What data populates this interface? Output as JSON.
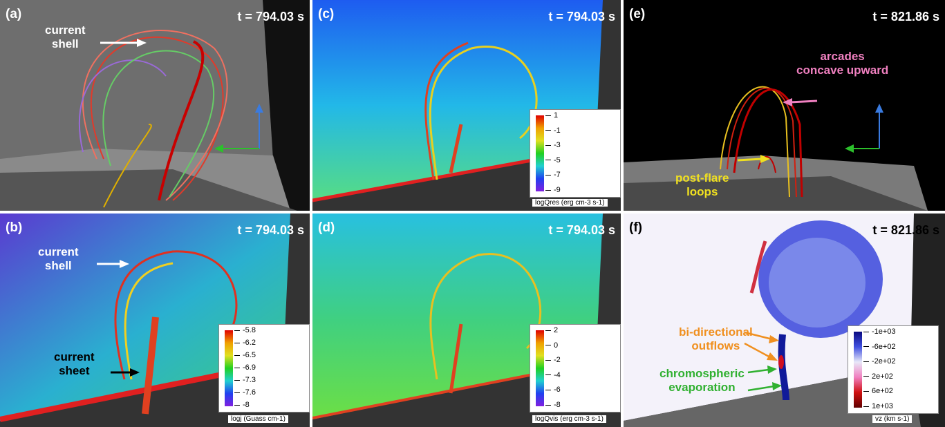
{
  "panels": [
    {
      "label": "(a)",
      "time": "t = 794.03 s",
      "annotations": [
        [
          "current",
          "shell"
        ]
      ]
    },
    {
      "label": "(b)",
      "time": "t = 794.03 s",
      "annotations": [
        [
          "current",
          "shell"
        ],
        [
          "current",
          "sheet"
        ]
      ],
      "colorbar": {
        "ticks": [
          "-5.8",
          "-6.2",
          "-6.5",
          "-6.9",
          "-7.3",
          "-7.6",
          "-8"
        ],
        "title": "logj (Guass cm-1)"
      }
    },
    {
      "label": "(c)",
      "time": "t = 794.03 s",
      "colorbar": {
        "ticks": [
          "1",
          "-1",
          "-3",
          "-5",
          "-7",
          "-9"
        ],
        "title": "logQres (erg cm-3 s-1)"
      }
    },
    {
      "label": "(d)",
      "time": "t = 794.03 s",
      "colorbar": {
        "ticks": [
          "2",
          "0",
          "-2",
          "-4",
          "-6",
          "-8"
        ],
        "title": "logQvis (erg cm-3 s-1)"
      }
    },
    {
      "label": "(e)",
      "time": "t = 821.86 s",
      "annotations": [
        [
          "arcades",
          "concave upward"
        ],
        [
          "post-flare",
          "loops"
        ]
      ]
    },
    {
      "label": "(f)",
      "time": "t = 821.86 s",
      "annotations": [
        [
          "bi-directional",
          "outflows"
        ],
        [
          "chromospheric",
          "evaporation"
        ]
      ],
      "colorbar": {
        "ticks": [
          "-1e+03",
          "-6e+02",
          "-2e+02",
          "2e+02",
          "6e+02",
          "1e+03"
        ],
        "title": "vz (km s-1)"
      }
    }
  ]
}
